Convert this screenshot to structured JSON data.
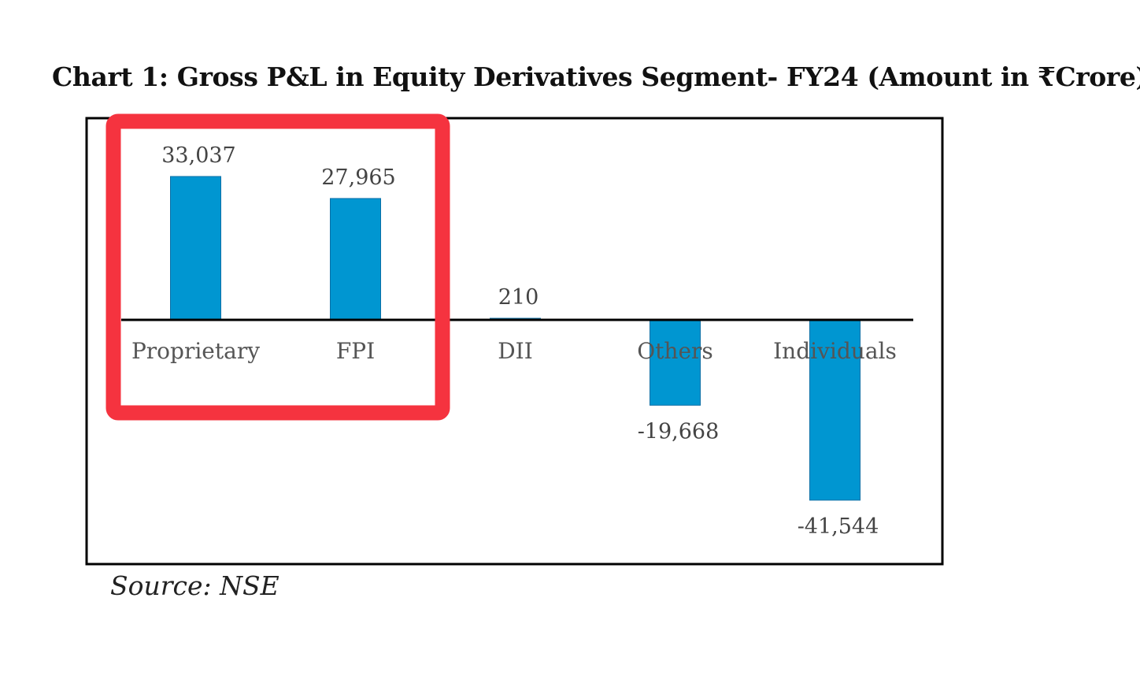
{
  "title": "Chart 1: Gross P&L in Equity Derivatives Segment- FY24 (Amount in  ₹Crore)",
  "source": "Source: NSE",
  "colors": {
    "bar": "#0096d1",
    "highlight": "#f5333f",
    "axis": "#000000"
  },
  "chart_data": {
    "type": "bar",
    "title": "Chart 1: Gross P&L in Equity Derivatives Segment- FY24 (Amount in  ₹Crore)",
    "xlabel": "",
    "ylabel": "",
    "categories": [
      "Proprietary",
      "FPI",
      "DII",
      "Others",
      "Individuals"
    ],
    "values": [
      33037,
      27965,
      210,
      -19668,
      -41544
    ],
    "value_labels": [
      "33,037",
      "27,965",
      "210",
      "-19,668",
      "-41,544"
    ],
    "ylim": [
      -50000,
      40000
    ],
    "grid": false,
    "legend": "none",
    "highlighted_categories": [
      "Proprietary",
      "FPI"
    ]
  }
}
